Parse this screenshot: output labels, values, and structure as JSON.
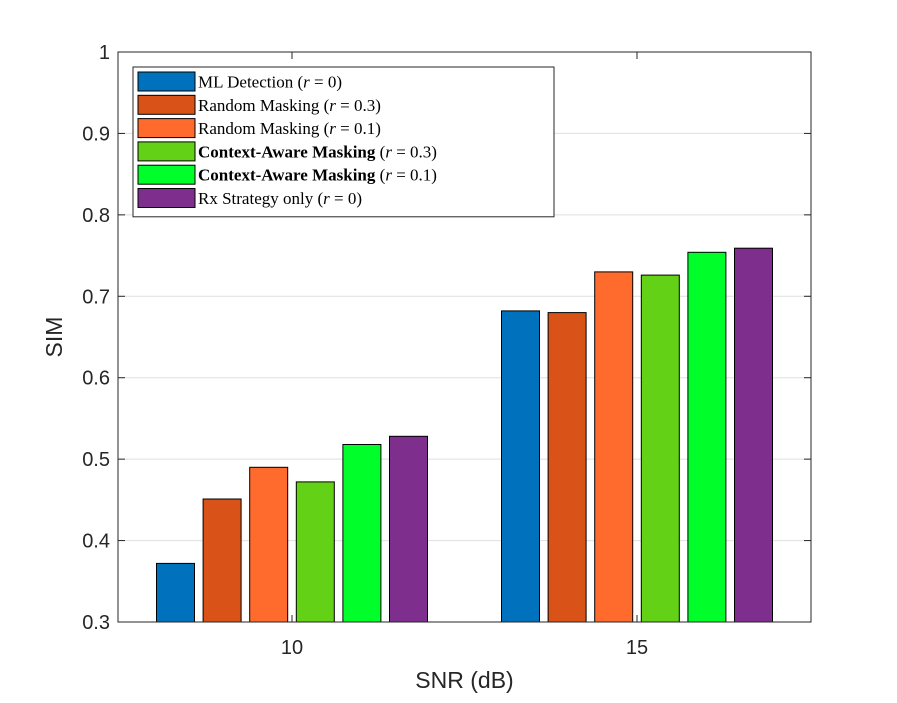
{
  "chart_data": {
    "type": "bar",
    "title": "",
    "xlabel": "SNR (dB)",
    "ylabel": "SIM",
    "ylim": [
      0.3,
      1.0
    ],
    "yticks": [
      "0.3",
      "0.4",
      "0.5",
      "0.6",
      "0.7",
      "0.8",
      "0.9",
      "1"
    ],
    "categories": [
      "10",
      "15"
    ],
    "grid": true,
    "legend_position": "top-left",
    "series": [
      {
        "name": "ML Detection (r = 0)",
        "label_bold": "",
        "label_plain": "ML Detection ",
        "param": "(r = 0)",
        "color": "#0072BD",
        "values": [
          0.372,
          0.682
        ]
      },
      {
        "name": "Random Masking (r = 0.3)",
        "label_bold": "",
        "label_plain": "Random Masking ",
        "param": "(r = 0.3)",
        "color": "#D95319",
        "values": [
          0.451,
          0.68
        ]
      },
      {
        "name": "Random Masking (r = 0.1)",
        "label_bold": "",
        "label_plain": "Random Masking ",
        "param": "(r = 0.1)",
        "color": "#FF6B2D",
        "values": [
          0.49,
          0.73
        ]
      },
      {
        "name": "Context-Aware Masking (r = 0.3)",
        "label_bold": "Context-Aware Masking ",
        "label_plain": "",
        "param": "(r = 0.3)",
        "color": "#63D116",
        "values": [
          0.472,
          0.726
        ]
      },
      {
        "name": "Context-Aware Masking (r = 0.1)",
        "label_bold": "Context-Aware Masking ",
        "label_plain": "",
        "param": "(r = 0.1)",
        "color": "#00FF2A",
        "values": [
          0.518,
          0.754
        ]
      },
      {
        "name": "Rx Strategy only (r = 0)",
        "label_bold": "",
        "label_plain": "Rx Strategy only ",
        "param": "(r = 0)",
        "color": "#7E2F8E",
        "values": [
          0.528,
          0.759
        ]
      }
    ]
  }
}
